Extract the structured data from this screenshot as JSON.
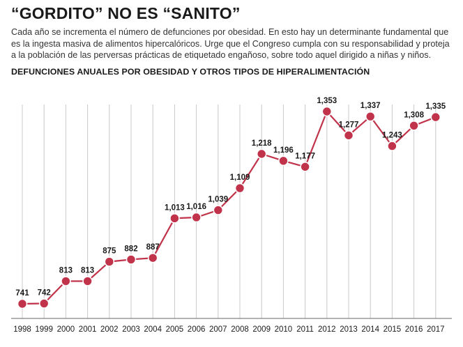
{
  "headline": "“GORDITO” NO ES “SANITO”",
  "intro": "Cada año se incrementa el número de defunciones por obesidad. En esto hay un determinante fundamental que es la ingesta masiva de alimentos hipercalóricos. Urge que el Congreso cumpla con su responsabilidad y proteja a la población de las perversas prácticas de etiquetado engañoso, sobre todo aquel dirigido a niñas y niños.",
  "chart_data": {
    "type": "line",
    "title": "DEFUNCIONES ANUALES POR OBESIDAD Y OTROS TIPOS DE HIPERALIMENTACIÓN",
    "xlabel": "",
    "ylabel": "",
    "categories": [
      "1998",
      "1999",
      "2000",
      "2001",
      "2002",
      "2003",
      "2004",
      "2005",
      "2006",
      "2007",
      "2008",
      "2009",
      "2010",
      "2011",
      "2012",
      "2013",
      "2014",
      "2015",
      "2016",
      "2017"
    ],
    "values": [
      741,
      742,
      813,
      813,
      875,
      882,
      887,
      1013,
      1016,
      1039,
      1109,
      1218,
      1196,
      1177,
      1353,
      1277,
      1337,
      1243,
      1308,
      1335
    ],
    "data_labels": [
      "741",
      "742",
      "813",
      "813",
      "875",
      "882",
      "887",
      "1,013",
      "1,016",
      "1,039",
      "1,109",
      "1,218",
      "1,196",
      "1,177",
      "1,353",
      "1,277",
      "1,337",
      "1,243",
      "1,308",
      "1,335"
    ],
    "grid": "vertical",
    "color": "#c0334a"
  }
}
